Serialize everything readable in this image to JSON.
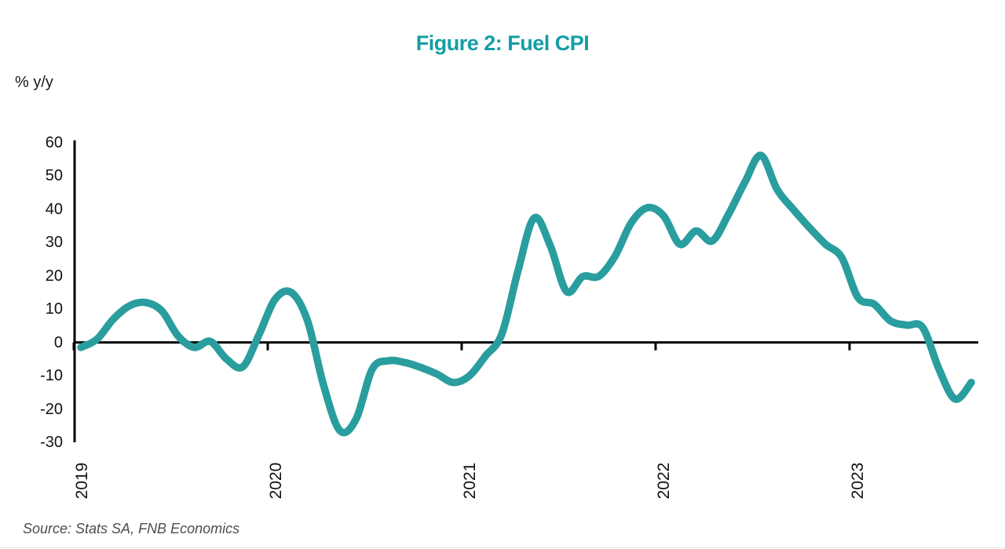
{
  "title": "Figure 2: Fuel CPI",
  "y_axis_unit": "% y/y",
  "source": "Source: Stats SA, FNB Economics",
  "colors": {
    "title": "#149EA6",
    "line": "#2A9D9E",
    "axis": "#000000",
    "tick_text": "#111111",
    "source_text": "#4d4d4d"
  },
  "chart_data": {
    "type": "line",
    "title": "Figure 2: Fuel CPI",
    "ylabel": "% y/y",
    "xlabel": "",
    "grid": false,
    "legend": "none",
    "ylim": [
      -30,
      60
    ],
    "y_ticks": [
      60,
      50,
      40,
      30,
      20,
      10,
      0,
      -10,
      -20,
      -30
    ],
    "x_tick_labels": [
      "2019",
      "2020",
      "2021",
      "2022",
      "2023"
    ],
    "frequency": "monthly",
    "x_start": "2019-01",
    "x_end": "2023-08",
    "series": [
      {
        "name": "Fuel CPI (% y/y)",
        "values": [
          -1.5,
          1.0,
          7.0,
          11.0,
          12.0,
          9.5,
          2.0,
          -1.5,
          0.3,
          -5.0,
          -7.3,
          2.3,
          13.0,
          15.0,
          6.5,
          -13.0,
          -26.5,
          -23.0,
          -8.0,
          -5.5,
          -6.0,
          -7.5,
          -9.5,
          -12.0,
          -10.0,
          -4.0,
          2.5,
          21.5,
          37.4,
          29.0,
          15.3,
          19.8,
          19.9,
          26.0,
          36.0,
          40.5,
          38.0,
          29.5,
          33.5,
          30.5,
          38.5,
          48.0,
          56.2,
          46.0,
          40.0,
          34.5,
          29.5,
          25.5,
          13.5,
          11.5,
          6.5,
          5.2,
          4.5,
          -8.0,
          -17.0,
          -12.0
        ]
      }
    ]
  }
}
